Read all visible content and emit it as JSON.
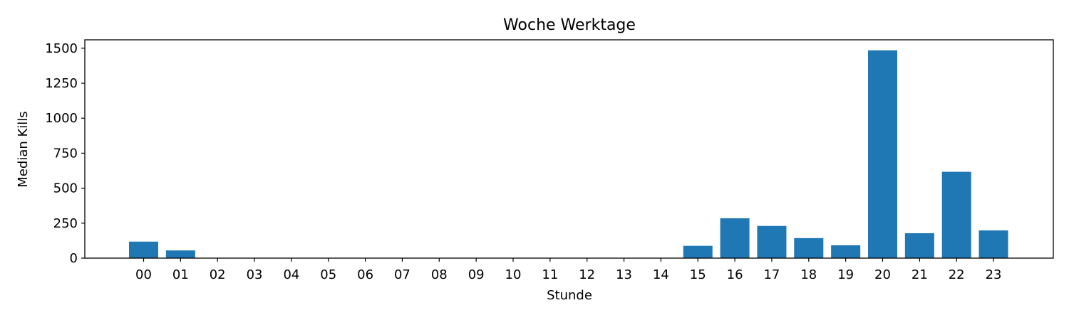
{
  "chart_data": {
    "type": "bar",
    "title": "Woche Werktage",
    "xlabel": "Stunde",
    "ylabel": "Median Kills",
    "categories": [
      "00",
      "01",
      "02",
      "03",
      "04",
      "05",
      "06",
      "07",
      "08",
      "09",
      "10",
      "11",
      "12",
      "13",
      "14",
      "15",
      "16",
      "17",
      "18",
      "19",
      "20",
      "21",
      "22",
      "23"
    ],
    "values": [
      118,
      55,
      0,
      0,
      0,
      0,
      0,
      0,
      0,
      0,
      0,
      0,
      0,
      0,
      0,
      88,
      285,
      230,
      143,
      92,
      1485,
      178,
      617,
      198
    ],
    "ylim": [
      0,
      1560
    ],
    "yticks": [
      0,
      250,
      500,
      750,
      1000,
      1250,
      1500
    ],
    "grid": false,
    "bar_color": "#1f77b4"
  }
}
